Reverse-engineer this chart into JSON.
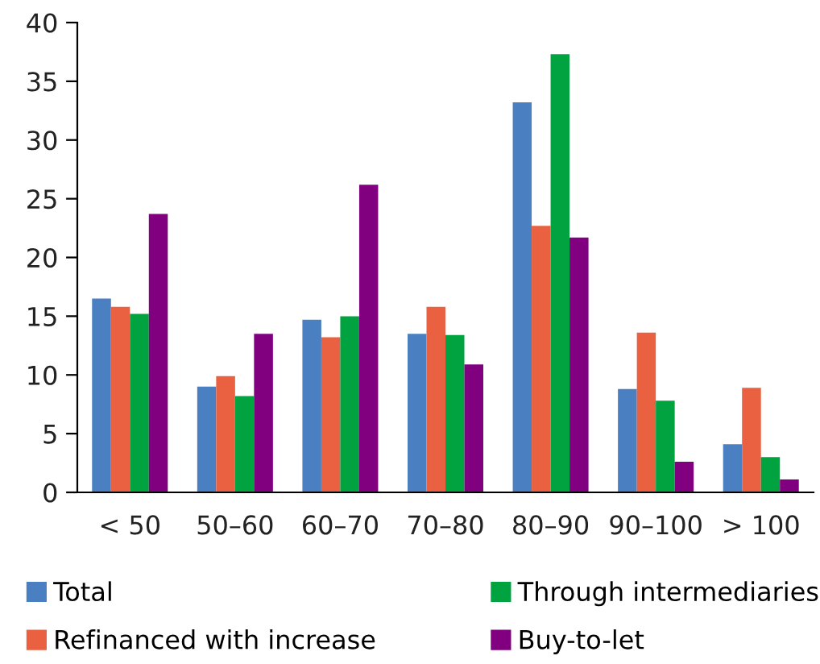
{
  "chart_data": {
    "type": "bar",
    "categories": [
      "< 50",
      "50–60",
      "60–70",
      "70–80",
      "80–90",
      "90–100",
      "> 100"
    ],
    "series": [
      {
        "name": "Total",
        "color": "#4a7fc1",
        "values": [
          16.5,
          9.0,
          14.7,
          13.5,
          33.2,
          8.8,
          4.1
        ]
      },
      {
        "name": "Refinanced with increase",
        "color": "#e96140",
        "values": [
          15.8,
          9.9,
          13.2,
          15.8,
          22.7,
          13.6,
          8.9
        ]
      },
      {
        "name": "Through intermediaries",
        "color": "#00a33f",
        "values": [
          15.2,
          8.2,
          15.0,
          13.4,
          37.3,
          7.8,
          3.0
        ]
      },
      {
        "name": "Buy-to-let",
        "color": "#800080",
        "values": [
          23.7,
          13.5,
          26.2,
          10.9,
          21.7,
          2.6,
          1.1
        ]
      }
    ],
    "ylim": [
      0,
      40
    ],
    "yticks": [
      0,
      5,
      10,
      15,
      20,
      25,
      30,
      35,
      40
    ],
    "grid": false,
    "legend": "bottom"
  }
}
